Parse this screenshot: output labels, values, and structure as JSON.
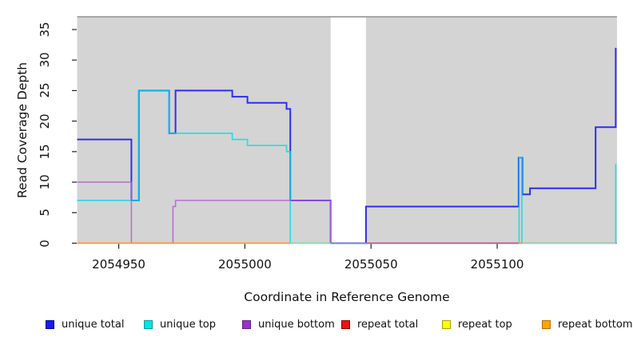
{
  "chart_data": {
    "type": "line",
    "subtype": "step-coverage-plot",
    "title": "",
    "xlabel": "Coordinate in Reference Genome",
    "ylabel": "Read Coverage Depth",
    "xlim": [
      2054933.5,
      2055147.5
    ],
    "ylim": [
      0,
      37.15
    ],
    "xticks": [
      "2054950",
      "2055000",
      "2055050",
      "2055100"
    ],
    "xtick_values": [
      2054950,
      2055000,
      2055050,
      2055100
    ],
    "yticks": [
      "0",
      "5",
      "10",
      "15",
      "20",
      "25",
      "30",
      "35"
    ],
    "ytick_values": [
      0,
      5,
      10,
      15,
      20,
      25,
      30,
      35
    ],
    "grid": false,
    "legend_position": "bottom",
    "panel_bg": "#d4d4d4",
    "panel_border_top": "#909090",
    "tick_color": "#222222",
    "no_data_gap_x": [
      2055034,
      2055048
    ],
    "series": [
      {
        "name": "unique total",
        "legend_color": "#1a1aee",
        "swatch_border": "#0000a0",
        "plot_color": "#2d2df0",
        "width": 2,
        "opacity": 1,
        "points": [
          [
            2054933.5,
            17
          ],
          [
            2054955,
            17
          ],
          [
            2054955,
            7
          ],
          [
            2054958,
            7
          ],
          [
            2054958,
            25
          ],
          [
            2054970,
            25
          ],
          [
            2054970,
            18
          ],
          [
            2054972.5,
            18
          ],
          [
            2054972.5,
            25
          ],
          [
            2054995,
            25
          ],
          [
            2054995,
            24
          ],
          [
            2055001,
            24
          ],
          [
            2055001,
            23
          ],
          [
            2055016.5,
            23
          ],
          [
            2055016.5,
            22
          ],
          [
            2055018,
            22
          ],
          [
            2055018,
            7
          ],
          [
            2055034,
            7
          ],
          [
            2055034,
            0
          ],
          [
            2055048,
            0
          ],
          [
            2055048,
            6
          ],
          [
            2055108.5,
            6
          ],
          [
            2055108.5,
            14
          ],
          [
            2055110,
            14
          ],
          [
            2055110,
            8
          ],
          [
            2055113,
            8
          ],
          [
            2055113,
            9
          ],
          [
            2055139,
            9
          ],
          [
            2055139,
            19
          ],
          [
            2055147,
            19
          ],
          [
            2055147,
            32
          ]
        ]
      },
      {
        "name": "unique top",
        "legend_color": "#00e5e5",
        "swatch_border": "#009898",
        "plot_color": "#00dde6",
        "width": 1.7,
        "opacity": 0.8,
        "points": [
          [
            2054933.5,
            7
          ],
          [
            2054958,
            7
          ],
          [
            2054958,
            25
          ],
          [
            2054970,
            25
          ],
          [
            2054970,
            18
          ],
          [
            2054995,
            18
          ],
          [
            2054995,
            17
          ],
          [
            2055001,
            17
          ],
          [
            2055001,
            16
          ],
          [
            2055016.5,
            16
          ],
          [
            2055016.5,
            15
          ],
          [
            2055018,
            15
          ],
          [
            2055018,
            0
          ],
          [
            2055108.7,
            0
          ],
          [
            2055108.7,
            14
          ],
          [
            2055109.8,
            14
          ],
          [
            2055109.8,
            0
          ],
          [
            2055147,
            0
          ],
          [
            2055147,
            13
          ]
        ]
      },
      {
        "name": "unique bottom",
        "legend_color": "#9932cc",
        "swatch_border": "#641e87",
        "plot_color": "#b15fd6",
        "width": 1.6,
        "opacity": 0.85,
        "points": [
          [
            2054933.5,
            10
          ],
          [
            2054955,
            10
          ],
          [
            2054955,
            0
          ],
          [
            2054971.5,
            0
          ],
          [
            2054971.5,
            6
          ],
          [
            2054972.5,
            6
          ],
          [
            2054972.5,
            7
          ],
          [
            2055034,
            7
          ],
          [
            2055034,
            0
          ],
          [
            2055147.5,
            0
          ]
        ]
      },
      {
        "name": "repeat total",
        "legend_color": "#ee1111",
        "swatch_border": "#8f0000",
        "plot_color": "#e04a6a",
        "width": 1.6,
        "opacity": 1,
        "points": [
          [
            2055048,
            0
          ],
          [
            2055108.5,
            0
          ]
        ]
      },
      {
        "name": "repeat top",
        "legend_color": "#ffff00",
        "swatch_border": "#a3a300",
        "plot_color": "#9bdc92",
        "width": 1.6,
        "opacity": 1,
        "points": [
          [
            2055018,
            0
          ],
          [
            2055034,
            0
          ],
          null,
          [
            2055110,
            0
          ],
          [
            2055147,
            0
          ]
        ]
      },
      {
        "name": "repeat bottom",
        "legend_color": "#ffa500",
        "swatch_border": "#b36d00",
        "plot_color": "#ff9d1a",
        "width": 1.8,
        "opacity": 1,
        "points": [
          [
            2054933.5,
            0
          ],
          [
            2055018,
            0
          ],
          null,
          [
            2055108.5,
            0
          ],
          [
            2055110,
            0
          ]
        ]
      }
    ]
  }
}
